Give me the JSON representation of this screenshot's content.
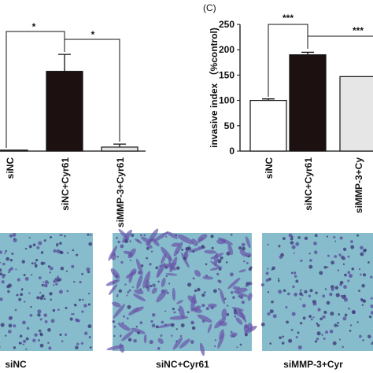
{
  "chart_data": [
    {
      "type": "bar",
      "categories": [
        "siNC",
        "siNC+Cyr61",
        "siMMP-3+Cyr61"
      ],
      "values": [
        1,
        80,
        4
      ],
      "errors": [
        0,
        17,
        3
      ],
      "colors": [
        "#ffffff",
        "#1c1010",
        "#e6e6e6"
      ],
      "ylim": [
        0,
        120
      ],
      "annotations": [
        "*",
        "*"
      ]
    },
    {
      "type": "bar",
      "title": "(C)",
      "y_label": "invasive index （%control)",
      "categories": [
        "siNC",
        "siNC+Cyr61",
        "siMMP-3+Cy"
      ],
      "values": [
        100,
        190,
        147
      ],
      "errors": [
        3,
        5,
        null
      ],
      "colors": [
        "#ffffff",
        "#1c1010",
        "#e6e6e6"
      ],
      "ylim": [
        0,
        250
      ],
      "yticks": [
        0,
        50,
        100,
        150,
        200,
        250
      ],
      "annotations": [
        "***",
        "***"
      ]
    }
  ],
  "image_panels": {
    "labels": [
      "siNC",
      "siNC+Cyr61",
      "siMMP-3+Cyr"
    ]
  }
}
